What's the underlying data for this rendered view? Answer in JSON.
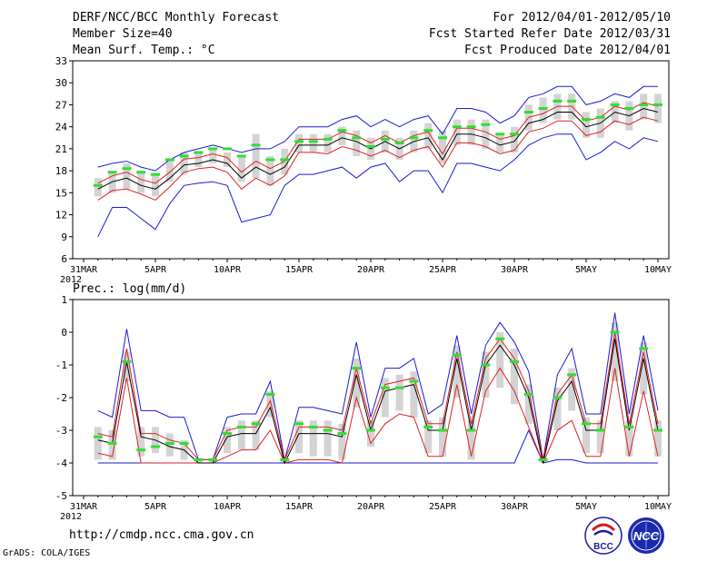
{
  "header": {
    "title": "DERF/NCC/BCC Monthly Forecast",
    "member": "Member Size=40",
    "variable": "Mean Surf. Temp.: °C",
    "period": "For 2012/04/01-2012/05/10",
    "started": "Fcst Started Refer Date 2012/03/31",
    "produced": "Fcst Produced Date 2012/04/01"
  },
  "footer": {
    "url": "http://cmdp.ncc.cma.gov.cn",
    "grads": "GrADS: COLA/IGES",
    "logo_bcc": "BCC",
    "logo_ncc": "NCC"
  },
  "colors": {
    "spread": "#d3d3d3",
    "mean": "#000000",
    "sd": "#dd2222",
    "range": "#1a1ad6",
    "median": "#33dd33"
  },
  "chart_data": [
    {
      "type": "line",
      "title": "Mean Surf. Temp.: °C",
      "ylim": [
        6,
        33
      ],
      "yticks": [
        6,
        9,
        12,
        15,
        18,
        21,
        24,
        27,
        30,
        33
      ],
      "xticks": [
        "31MAR",
        "5APR",
        "10APR",
        "15APR",
        "20APR",
        "25APR",
        "30APR",
        "5MAY",
        "10MAY"
      ],
      "xtick_days": [
        0,
        5,
        10,
        15,
        20,
        25,
        30,
        35,
        40
      ],
      "year_label": "2012",
      "days": [
        1,
        2,
        3,
        4,
        5,
        6,
        7,
        8,
        9,
        10,
        11,
        12,
        13,
        14,
        15,
        16,
        17,
        18,
        19,
        20,
        21,
        22,
        23,
        24,
        25,
        26,
        27,
        28,
        29,
        30,
        31,
        32,
        33,
        34,
        35,
        36,
        37,
        38,
        39,
        40
      ],
      "series": [
        {
          "name": "ensemble mean",
          "values": [
            15.5,
            16.5,
            17.0,
            16.0,
            15.5,
            17.0,
            18.8,
            19.0,
            19.5,
            19.0,
            17.0,
            18.5,
            17.5,
            18.5,
            21.5,
            21.5,
            21.5,
            22.5,
            22.0,
            21.0,
            22.0,
            21.0,
            22.0,
            22.5,
            19.5,
            23.0,
            23.0,
            22.5,
            21.5,
            22.0,
            24.5,
            25.0,
            26.0,
            26.0,
            24.0,
            24.5,
            26.0,
            25.5,
            26.5,
            26.0
          ]
        },
        {
          "name": "mean + sd",
          "values": [
            16.3,
            17.3,
            17.8,
            16.8,
            16.3,
            17.8,
            19.6,
            19.8,
            20.3,
            19.8,
            17.8,
            19.3,
            18.3,
            19.3,
            22.3,
            22.3,
            22.3,
            23.3,
            22.8,
            21.8,
            22.8,
            21.8,
            22.8,
            23.3,
            20.3,
            23.8,
            23.8,
            23.3,
            22.3,
            22.8,
            25.3,
            25.8,
            26.8,
            26.8,
            24.8,
            25.3,
            26.8,
            26.3,
            27.3,
            26.8
          ]
        },
        {
          "name": "mean - sd",
          "values": [
            14.0,
            15.3,
            15.5,
            14.8,
            14.0,
            15.8,
            17.8,
            18.3,
            18.5,
            17.8,
            15.5,
            17.0,
            16.0,
            17.3,
            20.5,
            20.5,
            20.3,
            21.3,
            20.8,
            20.0,
            20.8,
            19.8,
            20.8,
            21.3,
            18.5,
            21.8,
            21.8,
            21.3,
            20.3,
            20.8,
            23.3,
            23.8,
            24.8,
            24.8,
            22.8,
            23.3,
            24.8,
            24.3,
            25.3,
            24.8
          ]
        },
        {
          "name": "ensemble max",
          "values": [
            18.5,
            19.0,
            19.3,
            18.5,
            18.0,
            19.5,
            20.5,
            21.0,
            21.5,
            21.0,
            20.5,
            21.0,
            21.0,
            22.0,
            24.0,
            24.0,
            24.0,
            25.0,
            25.5,
            24.0,
            25.0,
            24.0,
            25.0,
            25.5,
            23.0,
            26.5,
            26.5,
            26.0,
            24.5,
            25.5,
            28.0,
            28.5,
            29.5,
            29.5,
            27.0,
            27.5,
            28.5,
            28.0,
            29.5,
            29.5
          ]
        },
        {
          "name": "ensemble min",
          "values": [
            9.0,
            13.0,
            13.0,
            11.5,
            10.0,
            13.5,
            16.0,
            16.3,
            16.5,
            16.0,
            11.0,
            11.5,
            12.0,
            16.0,
            17.5,
            17.5,
            18.0,
            18.5,
            17.0,
            18.5,
            19.0,
            16.5,
            18.0,
            18.0,
            15.0,
            19.0,
            19.0,
            18.5,
            18.0,
            19.5,
            21.5,
            22.5,
            23.0,
            23.0,
            19.5,
            20.5,
            22.0,
            21.0,
            22.5,
            22.0
          ]
        },
        {
          "name": "median",
          "values": [
            16.0,
            17.8,
            18.3,
            17.8,
            17.5,
            19.5,
            20.0,
            20.5,
            21.0,
            21.0,
            20.0,
            21.5,
            19.5,
            19.5,
            22.0,
            22.0,
            22.3,
            23.5,
            22.5,
            21.3,
            22.3,
            21.8,
            22.5,
            23.5,
            22.5,
            24.0,
            24.0,
            24.3,
            23.0,
            23.0,
            26.0,
            26.5,
            27.5,
            27.5,
            25.0,
            25.3,
            27.0,
            26.5,
            27.0,
            27.0
          ]
        },
        {
          "name": "25th percentile",
          "values": [
            14.5,
            15.0,
            15.5,
            15.0,
            14.5,
            16.5,
            17.5,
            18.5,
            19.0,
            18.5,
            16.5,
            17.0,
            16.0,
            17.5,
            20.5,
            20.5,
            20.5,
            21.5,
            20.0,
            19.5,
            20.5,
            19.5,
            20.5,
            21.0,
            19.0,
            21.5,
            21.5,
            21.0,
            20.5,
            20.5,
            23.5,
            24.5,
            25.0,
            25.0,
            22.5,
            22.5,
            24.5,
            23.5,
            25.0,
            24.5
          ]
        },
        {
          "name": "75th percentile",
          "values": [
            17.0,
            18.0,
            19.0,
            18.0,
            17.5,
            19.5,
            20.5,
            20.5,
            21.0,
            20.5,
            20.0,
            23.0,
            20.0,
            21.0,
            23.0,
            23.0,
            23.0,
            24.0,
            23.5,
            22.5,
            23.5,
            22.5,
            23.5,
            24.5,
            23.5,
            25.0,
            25.0,
            25.0,
            23.0,
            24.0,
            27.0,
            28.0,
            28.5,
            28.5,
            26.0,
            26.5,
            27.5,
            27.5,
            28.5,
            28.5
          ]
        }
      ]
    },
    {
      "type": "line",
      "title": "Prec.: log(mm/d)",
      "ylim": [
        -5,
        1
      ],
      "yticks": [
        -5,
        -4,
        -3,
        -2,
        -1,
        0,
        1
      ],
      "xticks": [
        "31MAR",
        "5APR",
        "10APR",
        "15APR",
        "20APR",
        "25APR",
        "30APR",
        "5MAY",
        "10MAY"
      ],
      "xtick_days": [
        0,
        5,
        10,
        15,
        20,
        25,
        30,
        35,
        40
      ],
      "year_label": "2012",
      "days": [
        1,
        2,
        3,
        4,
        5,
        6,
        7,
        8,
        9,
        10,
        11,
        12,
        13,
        14,
        15,
        16,
        17,
        18,
        19,
        20,
        21,
        22,
        23,
        24,
        25,
        26,
        27,
        28,
        29,
        30,
        31,
        32,
        33,
        34,
        35,
        36,
        37,
        38,
        39,
        40
      ],
      "series": [
        {
          "name": "ensemble mean",
          "values": [
            -3.3,
            -3.4,
            -0.9,
            -3.2,
            -3.3,
            -3.5,
            -3.6,
            -4.0,
            -4.0,
            -3.2,
            -3.1,
            -3.1,
            -2.3,
            -4.0,
            -3.1,
            -3.1,
            -3.1,
            -3.2,
            -1.3,
            -3.0,
            -1.8,
            -1.7,
            -1.6,
            -3.0,
            -3.0,
            -0.8,
            -3.0,
            -1.0,
            -0.4,
            -1.0,
            -2.0,
            -4.0,
            -2.1,
            -1.5,
            -3.0,
            -3.0,
            -0.2,
            -3.0,
            -0.8,
            -3.0
          ]
        },
        {
          "name": "mean + sd",
          "values": [
            -3.1,
            -3.2,
            -0.5,
            -3.1,
            -3.1,
            -3.3,
            -3.4,
            -3.9,
            -3.9,
            -3.0,
            -2.9,
            -2.9,
            -2.1,
            -3.9,
            -2.9,
            -2.9,
            -2.9,
            -3.0,
            -1.1,
            -2.8,
            -1.6,
            -1.5,
            -1.4,
            -2.8,
            -2.8,
            -0.6,
            -2.8,
            -0.8,
            -0.2,
            -0.8,
            -1.8,
            -3.9,
            -1.9,
            -1.3,
            -2.8,
            -2.8,
            0.0,
            -2.8,
            -0.6,
            -2.8
          ]
        },
        {
          "name": "mean - sd",
          "values": [
            -3.7,
            -3.8,
            -1.4,
            -4.0,
            -4.0,
            -4.0,
            -4.0,
            -4.0,
            -4.0,
            -3.8,
            -3.6,
            -3.6,
            -3.0,
            -4.0,
            -3.9,
            -3.9,
            -3.9,
            -4.0,
            -2.0,
            -3.4,
            -2.8,
            -2.5,
            -2.6,
            -3.8,
            -3.8,
            -1.6,
            -3.8,
            -1.8,
            -1.1,
            -1.8,
            -2.9,
            -4.0,
            -3.0,
            -2.7,
            -3.8,
            -3.8,
            -1.1,
            -3.8,
            -1.8,
            -3.8
          ]
        },
        {
          "name": "ensemble max",
          "values": [
            -2.4,
            -2.6,
            0.1,
            -2.4,
            -2.4,
            -2.6,
            -2.6,
            -3.9,
            -3.9,
            -2.6,
            -2.5,
            -2.5,
            -1.5,
            -3.9,
            -2.3,
            -2.3,
            -2.4,
            -2.5,
            -0.3,
            -2.6,
            -1.1,
            -1.1,
            -0.8,
            -2.5,
            -2.2,
            -0.1,
            -2.5,
            -0.4,
            0.3,
            -0.3,
            -1.2,
            -3.9,
            -1.3,
            -0.5,
            -2.5,
            -2.5,
            0.6,
            -2.5,
            -0.1,
            -2.4
          ]
        },
        {
          "name": "ensemble min",
          "values": [
            -4.0,
            -4.0,
            -4.0,
            -4.0,
            -4.0,
            -4.0,
            -4.0,
            -4.0,
            -4.0,
            -4.0,
            -4.0,
            -4.0,
            -4.0,
            -4.0,
            -4.0,
            -4.0,
            -4.0,
            -4.0,
            -4.0,
            -4.0,
            -4.0,
            -4.0,
            -4.0,
            -4.0,
            -4.0,
            -4.0,
            -4.0,
            -4.0,
            -4.0,
            -4.0,
            -3.0,
            -4.0,
            -3.9,
            -3.9,
            -4.0,
            -4.0,
            -4.0,
            -4.0,
            -4.0,
            -4.0
          ]
        },
        {
          "name": "median",
          "values": [
            -3.2,
            -3.4,
            -0.9,
            -3.6,
            -3.5,
            -3.4,
            -3.4,
            -3.9,
            -3.9,
            -3.1,
            -2.9,
            -2.8,
            -1.9,
            -3.9,
            -2.8,
            -2.9,
            -3.0,
            -3.1,
            -1.1,
            -3.0,
            -1.7,
            -1.7,
            -1.5,
            -2.9,
            -3.0,
            -0.7,
            -3.0,
            -1.0,
            -0.2,
            -0.9,
            -1.9,
            -3.9,
            -2.0,
            -1.3,
            -2.8,
            -3.0,
            0.0,
            -2.9,
            -0.5,
            -3.0
          ]
        },
        {
          "name": "25th percentile",
          "values": [
            -3.9,
            -3.9,
            -1.5,
            -3.8,
            -3.7,
            -3.8,
            -3.9,
            -4.0,
            -4.0,
            -3.7,
            -3.6,
            -3.6,
            -2.6,
            -4.0,
            -3.7,
            -3.8,
            -3.8,
            -3.9,
            -2.3,
            -3.5,
            -2.6,
            -2.4,
            -2.6,
            -3.7,
            -3.8,
            -2.0,
            -3.9,
            -2.0,
            -1.7,
            -2.2,
            -2.8,
            -4.0,
            -3.0,
            -2.4,
            -3.7,
            -3.7,
            -1.5,
            -3.8,
            -1.9,
            -3.8
          ]
        },
        {
          "name": "75th percentile",
          "values": [
            -2.9,
            -3.0,
            -0.6,
            -2.9,
            -2.9,
            -3.1,
            -3.3,
            -3.9,
            -3.9,
            -2.9,
            -2.7,
            -2.7,
            -1.8,
            -3.9,
            -2.7,
            -2.7,
            -2.7,
            -2.8,
            -0.8,
            -2.7,
            -1.4,
            -1.3,
            -1.2,
            -2.7,
            -2.6,
            -0.4,
            -2.7,
            -0.6,
            0.0,
            -0.5,
            -1.6,
            -3.9,
            -1.7,
            -1.1,
            -2.6,
            -2.7,
            0.3,
            -2.7,
            -0.3,
            -2.7
          ]
        }
      ]
    }
  ]
}
